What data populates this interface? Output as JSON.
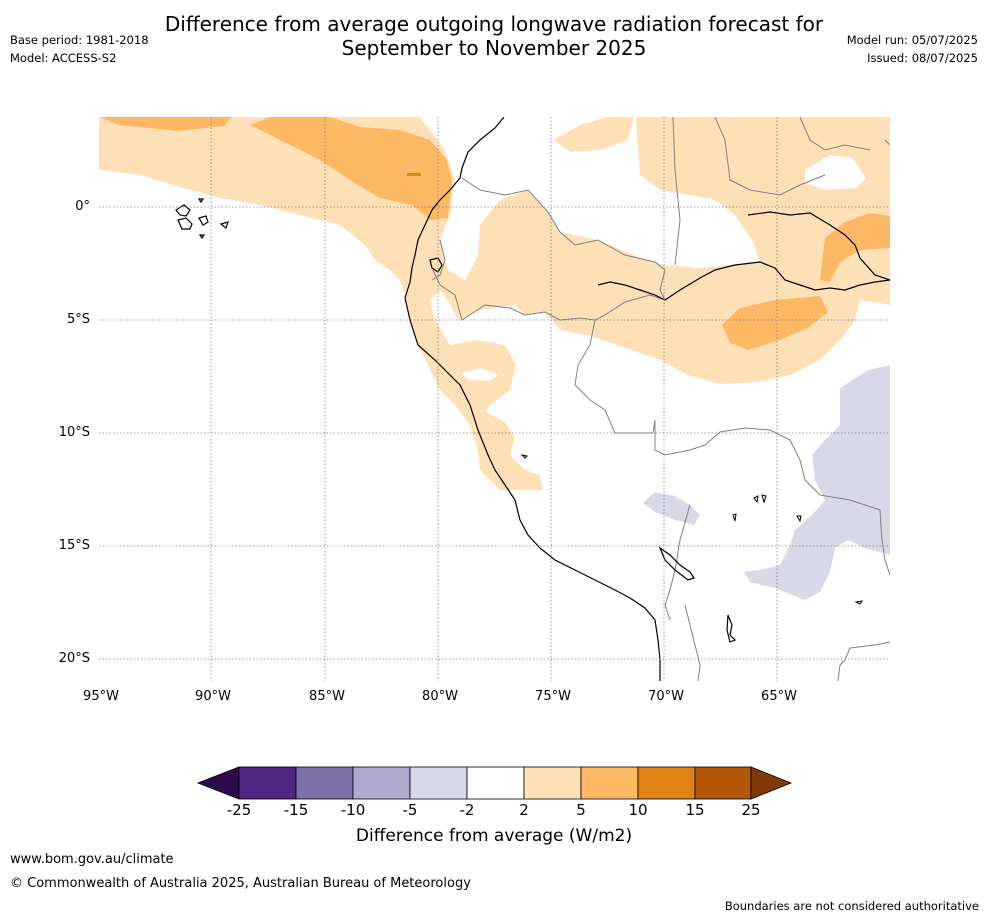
{
  "title": {
    "line1": "Difference from average outgoing longwave radiation forecast for",
    "line2": "September to November 2025"
  },
  "meta": {
    "base_period": "Base period: 1981-2018",
    "model": "Model: ACCESS-S2",
    "model_run": "Model run: 05/07/2025",
    "issued": "Issued: 08/07/2025"
  },
  "axes": {
    "lat_labels": [
      "0°",
      "5°S",
      "10°S",
      "15°S",
      "20°S"
    ],
    "lon_labels": [
      "95°W",
      "90°W",
      "85°W",
      "80°W",
      "75°W",
      "70°W",
      "65°W"
    ]
  },
  "colorbar": {
    "ticks": [
      "-25",
      "-15",
      "-10",
      "-5",
      "-2",
      "2",
      "5",
      "10",
      "15",
      "25"
    ],
    "colors": [
      "#2d0a4e",
      "#522683",
      "#7e70ab",
      "#b1aad0",
      "#d8d8e9",
      "#ffffff",
      "#fee0b6",
      "#fdb863",
      "#e08214",
      "#b35806",
      "#7f3b08"
    ],
    "label": "Difference from average (W/m2)"
  },
  "palette": {
    "light_orange": "#fee0b6",
    "mid_orange": "#fdb863",
    "dark_orange": "#e08214",
    "light_purple": "#d8d8e9",
    "coast": "#000000",
    "border": "#808080",
    "grid": "#808080"
  },
  "footer": {
    "url": "www.bom.gov.au/climate",
    "copyright": "© Commonwealth of Australia 2025, Australian Bureau of Meteorology",
    "note": "Boundaries are not considered authoritative"
  }
}
